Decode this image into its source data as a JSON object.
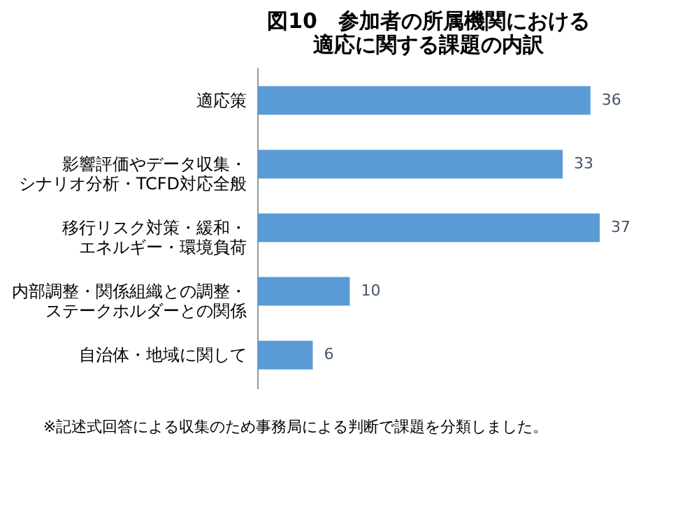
{
  "chart_data": {
    "type": "bar",
    "orientation": "horizontal",
    "title": "図10　参加者の所属機関における適応に関する課題の内訳",
    "categories": [
      "適応策",
      "影響評価やデータ収集・シナリオ分析・TCFD対応全般",
      "移行リスク対策・緩和・エネルギー・環境負荷",
      "内部調整・関係組織との調整・ステークホルダーとの関係",
      "自治体・地域に関して"
    ],
    "values": [
      36,
      33,
      37,
      10,
      6
    ],
    "color": "#5b9bd5",
    "data_labels": true,
    "grid": false,
    "annotations": [
      "※記述式回答による収集のため事務局による判断で課題を分類しました。"
    ]
  }
}
